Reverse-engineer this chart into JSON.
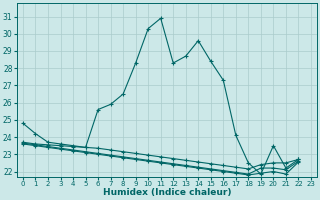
{
  "xlabel": "Humidex (Indice chaleur)",
  "bg_color": "#cce8e8",
  "grid_color": "#aacccc",
  "line_color": "#006666",
  "xlim": [
    -0.5,
    23.5
  ],
  "ylim": [
    21.7,
    31.8
  ],
  "yticks": [
    22,
    23,
    24,
    25,
    26,
    27,
    28,
    29,
    30,
    31
  ],
  "xticks": [
    0,
    1,
    2,
    3,
    4,
    5,
    6,
    7,
    8,
    9,
    10,
    11,
    12,
    13,
    14,
    15,
    16,
    17,
    18,
    19,
    20,
    21,
    22,
    23
  ],
  "series": [
    {
      "x": [
        0,
        1,
        2,
        3,
        4,
        5,
        6,
        7,
        8,
        9,
        10,
        11,
        12,
        13,
        14,
        15,
        16,
        17,
        18,
        19,
        20,
        21,
        22
      ],
      "y": [
        24.8,
        24.2,
        23.7,
        23.6,
        23.5,
        23.4,
        25.6,
        25.9,
        26.5,
        28.3,
        30.3,
        30.9,
        28.3,
        28.7,
        29.6,
        28.4,
        27.3,
        24.1,
        22.5,
        21.85,
        23.5,
        22.2,
        22.7
      ]
    },
    {
      "x": [
        0,
        1,
        2,
        3,
        4,
        5,
        6,
        7,
        8,
        9,
        10,
        11,
        12,
        13,
        14,
        15,
        16,
        17,
        18,
        19,
        20,
        21,
        22,
        23
      ],
      "y": [
        23.7,
        23.6,
        23.55,
        23.5,
        23.45,
        23.4,
        23.35,
        23.25,
        23.15,
        23.05,
        22.95,
        22.85,
        22.75,
        22.65,
        22.55,
        22.45,
        22.35,
        22.25,
        22.15,
        22.4,
        22.5,
        22.5,
        22.7,
        null
      ]
    },
    {
      "x": [
        0,
        1,
        2,
        3,
        4,
        5,
        6,
        7,
        8,
        9,
        10,
        11,
        12,
        13,
        14,
        15,
        16,
        17,
        18,
        19,
        20,
        21,
        22,
        23
      ],
      "y": [
        23.65,
        23.55,
        23.45,
        23.35,
        23.25,
        23.15,
        23.05,
        22.95,
        22.85,
        22.75,
        22.65,
        22.55,
        22.45,
        22.35,
        22.25,
        22.15,
        22.05,
        21.95,
        21.85,
        22.2,
        22.2,
        22.1,
        22.6,
        null
      ]
    },
    {
      "x": [
        0,
        1,
        2,
        3,
        4,
        5,
        6,
        7,
        8,
        9,
        10,
        11,
        12,
        13,
        14,
        15,
        16,
        17,
        18,
        19,
        20,
        21,
        22,
        23
      ],
      "y": [
        23.6,
        23.5,
        23.4,
        23.3,
        23.2,
        23.1,
        23.0,
        22.9,
        22.8,
        22.7,
        22.6,
        22.5,
        22.4,
        22.3,
        22.2,
        22.1,
        22.0,
        21.9,
        21.8,
        21.9,
        22.0,
        21.85,
        22.55,
        null
      ]
    }
  ]
}
